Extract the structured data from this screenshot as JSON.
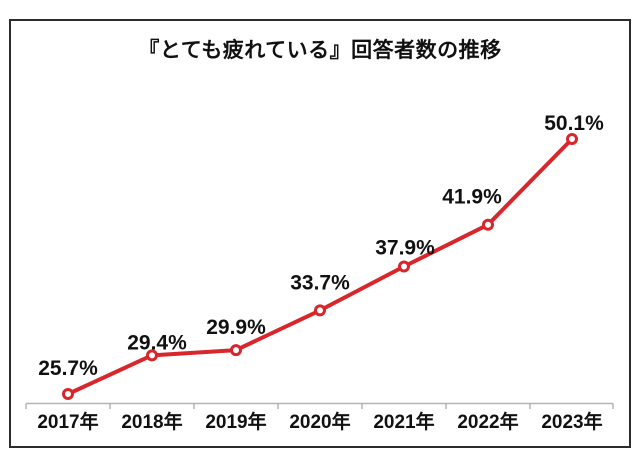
{
  "chart_data": {
    "type": "line",
    "title": "『とても疲れている』回答者数の推移",
    "categories": [
      "2017年",
      "2018年",
      "2019年",
      "2020年",
      "2021年",
      "2022年",
      "2023年"
    ],
    "values": [
      25.7,
      29.4,
      29.9,
      33.7,
      37.9,
      41.9,
      50.1
    ],
    "point_labels": [
      "25.7%",
      "29.4%",
      "29.9%",
      "33.7%",
      "37.9%",
      "41.9%",
      "50.1%"
    ],
    "xlabel": "",
    "ylabel": "",
    "ylim": [
      24.5,
      53
    ],
    "grid": false,
    "legend": false,
    "marker_style": "open-circle",
    "colors": {
      "line": "#d7262c",
      "marker_fill": "#ffffff",
      "label_text": "#111111",
      "axis_line": "#b5b5b5",
      "frame_border": "#2d2d2d",
      "background": "#ffffff"
    }
  }
}
